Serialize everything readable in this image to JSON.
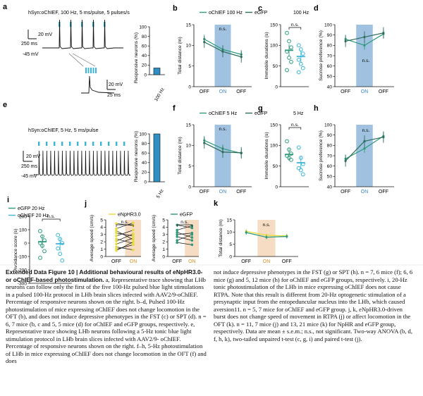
{
  "colors": {
    "green": "#2e9a7c",
    "dark_green": "#2c6e5b",
    "cyan": "#3ab6d8",
    "blue_on": "#8fb7db",
    "orange_on": "#f6dcc2",
    "yellow": "#e8dc3c",
    "bar_blue": "#2f8fc4",
    "black": "#111111"
  },
  "panels": {
    "a": {
      "letter": "a",
      "trace_title": "hSyn:oChIEF, 100 Hz, 5 ms/pulse, 5 pulses/s",
      "scale_v": "20 mV",
      "scale_t": "250 ms",
      "baseline": "-45 mV",
      "inset_scale_v": "20 mV",
      "inset_scale_t": "25 ms",
      "bar_ylabel": "Responsive neurons (%)",
      "bar_xlabel": "100 Hz",
      "bar_yticks": [
        "0",
        "20",
        "40",
        "60",
        "80",
        "100"
      ]
    },
    "e": {
      "letter": "e",
      "trace_title": "hSyn:oChIEF, 5 Hz, 5 ms/pulse",
      "scale_v": "20 mV",
      "scale_t": "250 ms",
      "baseline": "-45 mV",
      "bar_ylabel": "Responsive neurons (%)",
      "bar_xlabel": "5 Hz",
      "bar_yticks": [
        "0",
        "20",
        "40",
        "60",
        "80",
        "100"
      ]
    }
  },
  "chart_data": [
    {
      "id": "a-bar",
      "type": "bar",
      "categories": [
        "100 Hz"
      ],
      "values": [
        14
      ],
      "ylim": [
        0,
        100
      ],
      "ylabel": "Responsive neurons (%)"
    },
    {
      "id": "e-bar",
      "type": "bar",
      "categories": [
        "5 Hz"
      ],
      "values": [
        100
      ],
      "ylim": [
        0,
        100
      ],
      "ylabel": "Responsive neurons (%)"
    },
    {
      "id": "b",
      "letter": "b",
      "type": "line",
      "title": "",
      "legend": [
        "oChIEF 100 Hz",
        "eGFP"
      ],
      "ylabel": "Total distance (m)",
      "categories": [
        "OFF",
        "ON",
        "OFF"
      ],
      "ylim": [
        0,
        15
      ],
      "yticks": [
        "0",
        "5",
        "10",
        "15"
      ],
      "sig": "n.s.",
      "series": [
        {
          "name": "oChIEF 100 Hz",
          "values": [
            11.5,
            9.0,
            7.8
          ]
        },
        {
          "name": "eGFP",
          "values": [
            10.8,
            8.5,
            7.2
          ]
        }
      ]
    },
    {
      "id": "c",
      "letter": "c",
      "type": "scatter",
      "legend": [
        "100 Hz"
      ],
      "ylabel": "Immobile durations (s)",
      "categories": [
        "",
        ""
      ],
      "ylim": [
        0,
        150
      ],
      "yticks": [
        "0",
        "50",
        "100",
        "150"
      ],
      "sig": "n.s.",
      "means": [
        88,
        73
      ]
    },
    {
      "id": "d",
      "letter": "d",
      "type": "line",
      "ylabel": "Sucrose preference (%)",
      "categories": [
        "OFF",
        "ON",
        "OFF"
      ],
      "ylim": [
        40,
        100
      ],
      "yticks": [
        "40",
        "50",
        "60",
        "70",
        "80",
        "90",
        "100"
      ],
      "sig": "n.s.",
      "series": [
        {
          "name": "oChIEF 100 Hz",
          "values": [
            86,
            80,
            91
          ]
        },
        {
          "name": "eGFP",
          "values": [
            84,
            88,
            92
          ]
        }
      ]
    },
    {
      "id": "f",
      "letter": "f",
      "type": "line",
      "legend": [
        "oChIEF 5 Hz",
        "eGFP"
      ],
      "ylabel": "Total distance (m)",
      "categories": [
        "OFF",
        "ON",
        "OFF"
      ],
      "ylim": [
        0,
        15
      ],
      "yticks": [
        "0",
        "5",
        "10",
        "15"
      ],
      "sig": "n.s.",
      "series": [
        {
          "name": "oChIEF 5 Hz",
          "values": [
            11.2,
            9.2,
            8.1
          ]
        },
        {
          "name": "eGFP",
          "values": [
            10.6,
            8.4,
            8.2
          ]
        }
      ]
    },
    {
      "id": "g",
      "letter": "g",
      "type": "scatter",
      "legend": [
        "5 Hz"
      ],
      "ylabel": "Immobile durations (s)",
      "categories": [
        "",
        ""
      ],
      "ylim": [
        0,
        150
      ],
      "yticks": [
        "0",
        "50",
        "100",
        "150"
      ],
      "sig": "n.s.",
      "means": [
        78,
        58
      ]
    },
    {
      "id": "h",
      "letter": "h",
      "type": "line",
      "ylabel": "Sucrose preference (%)",
      "categories": [
        "OFF",
        "ON",
        "OFF"
      ],
      "ylim": [
        40,
        100
      ],
      "yticks": [
        "40",
        "50",
        "60",
        "70",
        "80",
        "90",
        "100"
      ],
      "sig": "n.s.",
      "series": [
        {
          "name": "oChIEF 5 Hz",
          "values": [
            67,
            77,
            89
          ]
        },
        {
          "name": "eGFP",
          "values": [
            65,
            84,
            88
          ]
        }
      ]
    },
    {
      "id": "i",
      "letter": "i",
      "type": "scatter",
      "legend": [
        "eGFP 20 Hz",
        "oChIEF 20 Hz"
      ],
      "ylabel": "Avoidance score (s)",
      "ylim": [
        -300,
        200
      ],
      "yticks": [
        "200",
        "100",
        "0",
        "-100",
        "-200",
        "-300"
      ],
      "sig": "n.s.",
      "means": [
        10,
        -5
      ]
    },
    {
      "id": "j1",
      "letter": "j",
      "type": "line",
      "title": "eNpHR3.0",
      "ylabel": "Average speed (cm/s)",
      "categories": [
        "OFF",
        "ON"
      ],
      "ylim": [
        0,
        5
      ],
      "yticks": [
        "0",
        "1",
        "2",
        "3",
        "4",
        "5"
      ],
      "sig": "n.s."
    },
    {
      "id": "j2",
      "type": "line",
      "title": "eGFP",
      "ylabel": "Average speed (cm/s)",
      "categories": [
        "OFF",
        "ON"
      ],
      "ylim": [
        0,
        5
      ],
      "yticks": [
        "0",
        "1",
        "2",
        "3",
        "4",
        "5"
      ],
      "sig": "n.s."
    },
    {
      "id": "k",
      "letter": "k",
      "type": "line",
      "ylabel": "Total distance (m)",
      "categories": [
        "OFF",
        "ON",
        "OFF"
      ],
      "ylim": [
        0,
        15
      ],
      "yticks": [
        "0",
        "5",
        "10",
        "15"
      ],
      "sig": "n.s.",
      "series": [
        {
          "name": "eNpHR3.0",
          "values": [
            10.3,
            8.7,
            8.4
          ]
        },
        {
          "name": "eGFP",
          "values": [
            9.8,
            7.9,
            8.2
          ]
        }
      ]
    }
  ],
  "caption": {
    "label": "Extended Data Figure 10 | Additional behavioural results of eNpHR3.0- or oChIEF-based photostimulation.",
    "left": " a, Representative trace showing that LHb neurons can follow only the first of the five 100-Hz pulsed blue light stimulations in a pulsed 100-Hz protocol in LHb brain slices infected with AAV2/9-oChIEF. Percentage of responsive neurons shown on the right. b–d, Pulsed 100-Hz photostimulation of mice expressing oChIEF does not change locomotion in the OFT (b), and does not induce depressive phenotypes in the FST (c) or SPT (d). n = 6, 7 mice (b, c and 5, 5 mice (d) for oChIEF and eGFP groups, respectively. e, Representative trace showing LHb neurons following a 5-Hz tonic blue light stimulation protocol in LHb brain slices infected with AAV2/9- oChIEF. Percentage of responsive neurons shown on the right. f–h, 5-Hz photostimulation of LHb in mice expressing oChIEF does not change locomotion in the OFT (f) and does",
    "right": "not induce depressive phenotypes in the FST (g) or SPT (h). n = 7, 6 mice (f); 6, 6 mice (g) and 5, 12 mice (h) for oChIEF and eGFP groups, respectively. i, 20-Hz tonic photostimulation of the LHb in mice expressing oChIEF does not cause RTPA. Note that this result is different from 20-Hz optogenetic stimulation of a presynaptic input from the entopeduncular nucleus into the LHb, which caused aversion11. n = 5, 7 mice for oChIEF and eGFP group. j, k, eNpHR3.0-driven burst does not change speed of movement in RTPA (j) or affect locomotion in the OFT (k). n = 11, 7 mice (j) and 13, 21 mice (k) for NpHR and eGFP group, respectively. Data are mean ± s.e.m.; n.s., not significant. Two-way ANOVA (b, d, f, h, k), two-tailed unpaired t-test (c, g, i) and paired t-test (j)."
  }
}
